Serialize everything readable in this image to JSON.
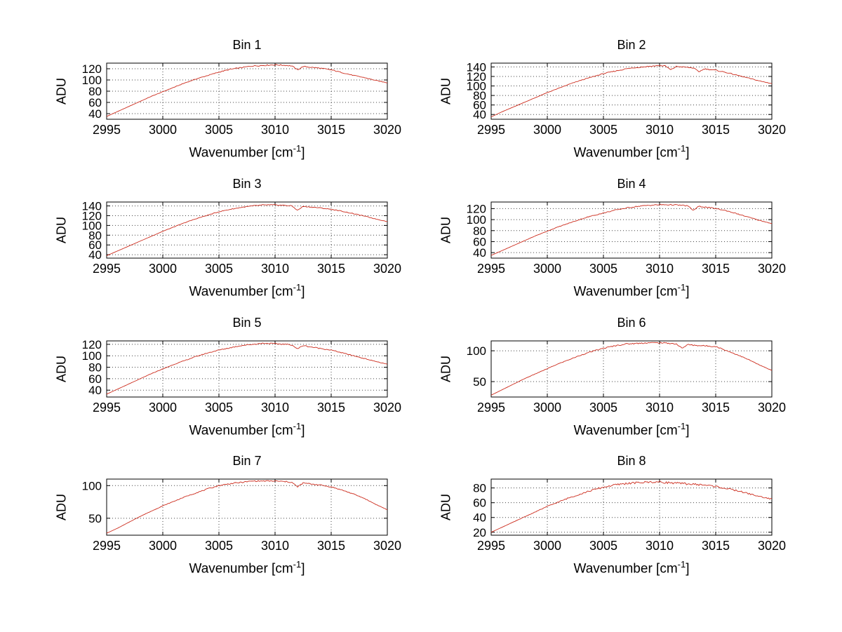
{
  "figure": {
    "background": "#ffffff",
    "line_color": "#cc2a1b",
    "grid_color": "#444444",
    "axis_color": "#000000",
    "grid_style": "dotted"
  },
  "labels": {
    "ylabel": "ADU",
    "xlabel_prefix": "Wavenumber [cm",
    "xlabel_sup": "-1",
    "xlabel_suffix": "]"
  },
  "chart_data": [
    {
      "type": "line",
      "title": "Bin 1",
      "xlabel": "Wavenumber [cm^-1]",
      "ylabel": "ADU",
      "xlim": [
        2995,
        3020
      ],
      "ylim": [
        30,
        130
      ],
      "xticks": [
        2995,
        3000,
        3005,
        3010,
        3015,
        3020
      ],
      "yticks": [
        40,
        60,
        80,
        100,
        120
      ],
      "grid": true,
      "noise_adu": 1.0,
      "x": [
        2995,
        2996,
        2997,
        2998,
        2999,
        3000,
        3001,
        3002,
        3003,
        3004,
        3005,
        3006,
        3007,
        3008,
        3009,
        3010,
        3011,
        3011.5,
        3012,
        3012.5,
        3013,
        3014,
        3015,
        3016,
        3017,
        3018,
        3019,
        3020
      ],
      "y": [
        35,
        44,
        53,
        62,
        71,
        79,
        87,
        95,
        102,
        108,
        114,
        119,
        122,
        125,
        126,
        127,
        126,
        125,
        118,
        124,
        123,
        121,
        118,
        113,
        108,
        104,
        99,
        95
      ]
    },
    {
      "type": "line",
      "title": "Bin 2",
      "xlabel": "Wavenumber [cm^-1]",
      "ylabel": "ADU",
      "xlim": [
        2995,
        3020
      ],
      "ylim": [
        30,
        148
      ],
      "xticks": [
        2995,
        3000,
        3005,
        3010,
        3015,
        3020
      ],
      "yticks": [
        40,
        60,
        80,
        100,
        120,
        140
      ],
      "grid": true,
      "noise_adu": 1.2,
      "x": [
        2995,
        2996,
        2997,
        2998,
        2999,
        3000,
        3001,
        3002,
        3003,
        3004,
        3005,
        3006,
        3007,
        3008,
        3009,
        3010,
        3010.5,
        3011,
        3011.5,
        3012,
        3013,
        3013.5,
        3014,
        3015,
        3016,
        3017,
        3018,
        3019,
        3020
      ],
      "y": [
        35,
        46,
        56,
        66,
        76,
        86,
        95,
        104,
        112,
        119,
        126,
        131,
        136,
        139,
        141,
        143,
        142,
        134,
        141,
        140,
        138,
        130,
        136,
        133,
        128,
        122,
        116,
        110,
        105
      ]
    },
    {
      "type": "line",
      "title": "Bin 3",
      "xlabel": "Wavenumber [cm^-1]",
      "ylabel": "ADU",
      "xlim": [
        2995,
        3020
      ],
      "ylim": [
        33,
        148
      ],
      "xticks": [
        2995,
        3000,
        3005,
        3010,
        3015,
        3020
      ],
      "yticks": [
        40,
        60,
        80,
        100,
        120,
        140
      ],
      "grid": true,
      "noise_adu": 0.9,
      "x": [
        2995,
        2996,
        2997,
        2998,
        2999,
        3000,
        3001,
        3002,
        3003,
        3004,
        3005,
        3006,
        3007,
        3008,
        3009,
        3010,
        3011,
        3011.5,
        3012,
        3012.5,
        3013,
        3014,
        3015,
        3016,
        3017,
        3018,
        3019,
        3020
      ],
      "y": [
        38,
        48,
        58,
        68,
        78,
        88,
        97,
        106,
        114,
        121,
        128,
        133,
        137,
        140,
        142,
        142,
        141,
        140,
        131,
        139,
        138,
        136,
        133,
        129,
        124,
        119,
        113,
        108
      ]
    },
    {
      "type": "line",
      "title": "Bin 4",
      "xlabel": "Wavenumber [cm^-1]",
      "ylabel": "ADU",
      "xlim": [
        2995,
        3020
      ],
      "ylim": [
        30,
        132
      ],
      "xticks": [
        2995,
        3000,
        3005,
        3010,
        3015,
        3020
      ],
      "yticks": [
        40,
        60,
        80,
        100,
        120
      ],
      "grid": true,
      "noise_adu": 1.0,
      "x": [
        2995,
        2996,
        2997,
        2998,
        2999,
        3000,
        3001,
        3002,
        3003,
        3004,
        3005,
        3006,
        3007,
        3008,
        3009,
        3010,
        3011,
        3012,
        3012.5,
        3013,
        3013.5,
        3014,
        3015,
        3016,
        3017,
        3018,
        3019,
        3020
      ],
      "y": [
        35,
        44,
        53,
        62,
        71,
        79,
        87,
        94,
        101,
        107,
        112,
        117,
        121,
        124,
        126,
        127,
        127,
        126,
        125,
        117,
        124,
        123,
        120,
        116,
        110,
        104,
        98,
        93
      ]
    },
    {
      "type": "line",
      "title": "Bin 5",
      "xlabel": "Wavenumber [cm^-1]",
      "ylabel": "ADU",
      "xlim": [
        2995,
        3020
      ],
      "ylim": [
        28,
        126
      ],
      "xticks": [
        2995,
        3000,
        3005,
        3010,
        3015,
        3020
      ],
      "yticks": [
        40,
        60,
        80,
        100,
        120
      ],
      "grid": true,
      "noise_adu": 1.0,
      "x": [
        2995,
        2996,
        2997,
        2998,
        2999,
        3000,
        3001,
        3002,
        3003,
        3004,
        3005,
        3006,
        3007,
        3008,
        3009,
        3010,
        3011,
        3011.5,
        3012,
        3012.5,
        3013,
        3014,
        3015,
        3016,
        3017,
        3018,
        3019,
        3020
      ],
      "y": [
        33,
        42,
        51,
        60,
        69,
        77,
        85,
        92,
        99,
        105,
        110,
        114,
        118,
        120,
        122,
        121,
        120,
        119,
        112,
        118,
        116,
        113,
        110,
        105,
        100,
        95,
        90,
        85
      ]
    },
    {
      "type": "line",
      "title": "Bin 6",
      "xlabel": "Wavenumber [cm^-1]",
      "ylabel": "ADU",
      "xlim": [
        2995,
        3020
      ],
      "ylim": [
        25,
        116
      ],
      "xticks": [
        2995,
        3000,
        3005,
        3010,
        3015,
        3020
      ],
      "yticks": [
        50,
        100
      ],
      "grid": true,
      "noise_adu": 1.0,
      "x": [
        2995,
        2996,
        2997,
        2998,
        2999,
        3000,
        3001,
        3002,
        3003,
        3004,
        3005,
        3006,
        3007,
        3008,
        3009,
        3010,
        3011,
        3011.5,
        3012,
        3012.5,
        3013,
        3014,
        3015,
        3016,
        3017,
        3018,
        3019,
        3020
      ],
      "y": [
        28,
        37,
        46,
        55,
        63,
        71,
        79,
        86,
        93,
        99,
        104,
        108,
        111,
        112,
        113,
        113,
        112,
        111,
        104,
        110,
        109,
        108,
        107,
        100,
        93,
        85,
        76,
        68
      ]
    },
    {
      "type": "line",
      "title": "Bin 7",
      "xlabel": "Wavenumber [cm^-1]",
      "ylabel": "ADU",
      "xlim": [
        2995,
        3020
      ],
      "ylim": [
        24,
        110
      ],
      "xticks": [
        2995,
        3000,
        3005,
        3010,
        3015,
        3020
      ],
      "yticks": [
        50,
        100
      ],
      "grid": true,
      "noise_adu": 0.9,
      "x": [
        2995,
        2996,
        2997,
        2998,
        2999,
        3000,
        3001,
        3002,
        3003,
        3004,
        3005,
        3006,
        3007,
        3008,
        3009,
        3010,
        3011,
        3011.5,
        3012,
        3012.5,
        3013,
        3014,
        3015,
        3016,
        3017,
        3018,
        3019,
        3020
      ],
      "y": [
        27,
        35,
        44,
        53,
        61,
        69,
        76,
        83,
        89,
        95,
        100,
        103,
        105,
        107,
        107,
        107,
        106,
        105,
        98,
        104,
        103,
        101,
        98,
        93,
        87,
        80,
        71,
        63
      ]
    },
    {
      "type": "line",
      "title": "Bin 8",
      "xlabel": "Wavenumber [cm^-1]",
      "ylabel": "ADU",
      "xlim": [
        2995,
        3020
      ],
      "ylim": [
        16,
        92
      ],
      "xticks": [
        2995,
        3000,
        3005,
        3010,
        3015,
        3020
      ],
      "yticks": [
        20,
        40,
        60,
        80
      ],
      "grid": true,
      "noise_adu": 1.4,
      "x": [
        2995,
        2996,
        2997,
        2998,
        2999,
        3000,
        3001,
        3002,
        3003,
        3004,
        3005,
        3006,
        3007,
        3008,
        3009,
        3010,
        3011,
        3012,
        3013,
        3014,
        3015,
        3016,
        3017,
        3018,
        3019,
        3020
      ],
      "y": [
        20,
        27,
        34,
        41,
        48,
        55,
        61,
        67,
        72,
        77,
        81,
        84,
        86,
        87,
        88,
        88,
        87,
        86,
        85,
        84,
        82,
        79,
        76,
        72,
        68,
        65
      ]
    }
  ]
}
